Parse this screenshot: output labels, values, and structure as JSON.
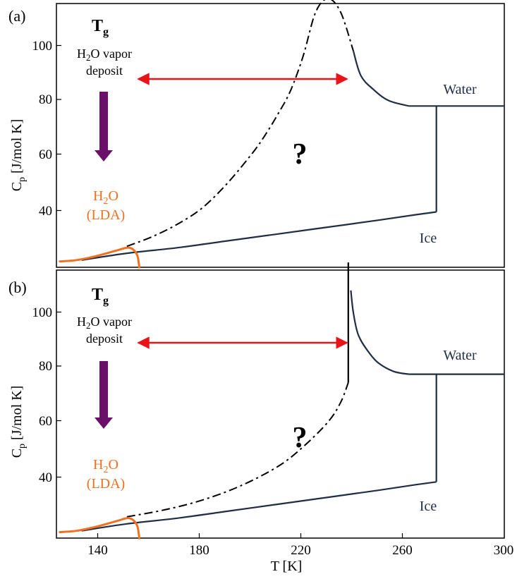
{
  "chart_data": [
    {
      "panel_label": "(a)",
      "type": "line",
      "xlim": [
        122,
        300
      ],
      "ylim": [
        20,
        118
      ],
      "ylabel_main": "C",
      "ylabel_sub": "p",
      "ylabel_units": " [J/mol K]",
      "yticks": [
        40,
        60,
        80,
        100
      ],
      "tg_main": "T",
      "tg_sub": "g",
      "deposit_line1_pre": "H",
      "deposit_line1_sub": "2",
      "deposit_line1_post": "O vapor",
      "deposit_line2": "deposit",
      "lda_line1_pre": "H",
      "lda_line1_sub": "2",
      "lda_line1_post": "O",
      "lda_line2": "(LDA)",
      "question": "?",
      "water_label": "Water",
      "ice_label": "Ice",
      "arrow_range": [
        150,
        238
      ],
      "colors": {
        "curve": "#1f2d45",
        "lda": "#f07020",
        "arrow": "#e8141a",
        "down_arrow": "#6a0f6a"
      },
      "series": [
        {
          "x": [
            132,
            150,
            170,
            190,
            210,
            230,
            250,
            265,
            273
          ],
          "y": [
            22,
            24.5,
            26.5,
            29,
            31.5,
            34,
            36.5,
            38.5,
            39.5
          ]
        },
        {
          "x": [
            273,
            273
          ],
          "y": [
            39.5,
            78
          ]
        },
        {
          "x": [
            262,
            273,
            300
          ],
          "y": [
            78,
            78,
            78
          ]
        },
        {
          "x": [
            240,
            243,
            248,
            254,
            262
          ],
          "y": [
            98,
            89,
            84,
            80,
            78
          ]
        },
        {
          "x": [
            150,
            160,
            170,
            180,
            190,
            200,
            205,
            210,
            215,
            220,
            225,
            230,
            235,
            240
          ],
          "y": [
            27,
            30.5,
            35,
            41,
            50,
            61,
            67.5,
            75,
            83.5,
            96,
            112,
            117,
            112,
            98
          ]
        },
        {
          "x": [
            123,
            130,
            138,
            146,
            151,
            154,
            155
          ],
          "y": [
            21.5,
            22,
            23.5,
            25.5,
            26.5,
            24,
            19
          ]
        }
      ]
    },
    {
      "panel_label": "(b)",
      "type": "line",
      "xlim": [
        122,
        300
      ],
      "ylim": [
        20,
        118
      ],
      "xlabel": "T [K]",
      "xticks": [
        140,
        180,
        220,
        260,
        300
      ],
      "ylabel_main": "C",
      "ylabel_sub": "p",
      "ylabel_units": " [J/mol K]",
      "yticks": [
        40,
        60,
        80,
        100
      ],
      "tg_main": "T",
      "tg_sub": "g",
      "deposit_line1_pre": "H",
      "deposit_line1_sub": "2",
      "deposit_line1_post": "O vapor",
      "deposit_line2": "deposit",
      "lda_line1_pre": "H",
      "lda_line1_sub": "2",
      "lda_line1_post": "O",
      "lda_line2": "(LDA)",
      "question": "?",
      "water_label": "Water",
      "ice_label": "Ice",
      "arrow_range": [
        150,
        237
      ],
      "colors": {
        "curve": "#1f2d45",
        "lda": "#f07020",
        "arrow": "#e8141a",
        "down_arrow": "#6a0f6a"
      },
      "series": [
        {
          "x": [
            132,
            150,
            170,
            190,
            210,
            230,
            250,
            265,
            273
          ],
          "y": [
            22,
            24.5,
            26.5,
            29,
            31.5,
            34,
            36.5,
            38.5,
            39.5
          ]
        },
        {
          "x": [
            273,
            273
          ],
          "y": [
            39.5,
            78
          ]
        },
        {
          "x": [
            262,
            273,
            300
          ],
          "y": [
            78,
            78,
            78
          ]
        },
        {
          "x": [
            239,
            240,
            242,
            246,
            250,
            256,
            262
          ],
          "y": [
            108,
            100,
            92,
            86,
            82,
            79,
            78
          ]
        },
        {
          "x": [
            150,
            165,
            180,
            195,
            210,
            220,
            230,
            235,
            238
          ],
          "y": [
            27,
            29.5,
            33,
            38,
            45,
            52,
            61,
            68,
            75
          ]
        },
        {
          "x": [
            238,
            238
          ],
          "y": [
            75,
            118
          ]
        },
        {
          "x": [
            123,
            130,
            138,
            146,
            151,
            154,
            155
          ],
          "y": [
            21.5,
            22,
            23.5,
            25.5,
            26.5,
            24,
            19
          ]
        }
      ]
    }
  ]
}
